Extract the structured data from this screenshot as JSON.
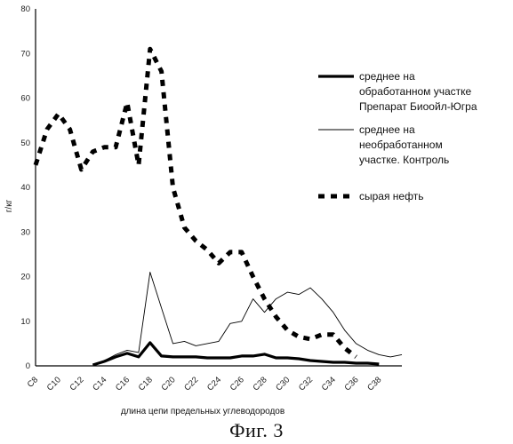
{
  "caption": "Фиг. 3",
  "chart_data": {
    "type": "line",
    "ylabel": "г/кг",
    "xlabel": "длина цепи предельных углеводородов",
    "ylim": [
      0,
      80
    ],
    "yticks": [
      0,
      10,
      20,
      30,
      40,
      50,
      60,
      70,
      80
    ],
    "categories": [
      "C8",
      "C9",
      "C10",
      "C11",
      "C12",
      "C13",
      "C14",
      "C15",
      "C16",
      "C17",
      "C18",
      "C19",
      "C20",
      "C21",
      "C22",
      "C23",
      "C24",
      "C25",
      "C26",
      "C27",
      "C28",
      "C29",
      "C30",
      "C31",
      "C32",
      "C33",
      "C34",
      "C35",
      "C36",
      "C37",
      "C38",
      "C39",
      "C40"
    ],
    "xtick_labels": [
      "C8",
      "C10",
      "C12",
      "C14",
      "C16",
      "C18",
      "C20",
      "C22",
      "C24",
      "C26",
      "C28",
      "C30",
      "C32",
      "C34",
      "C36",
      "C38"
    ],
    "grid": false,
    "legend_position": "right",
    "series": [
      {
        "name": "среднее на обработанном участке Препарат Биоойл-Югра",
        "style": "thick",
        "color": "#000000",
        "values": [
          null,
          null,
          null,
          null,
          null,
          0.2,
          1.0,
          2.0,
          2.8,
          2.0,
          5.2,
          2.2,
          2.0,
          2.0,
          2.0,
          1.8,
          1.8,
          1.8,
          2.2,
          2.2,
          2.6,
          1.8,
          1.8,
          1.6,
          1.2,
          1.0,
          0.8,
          0.8,
          0.6,
          0.6,
          0.4,
          null,
          null
        ]
      },
      {
        "name": "среднее на необработанном участке. Контроль",
        "style": "thin",
        "color": "#000000",
        "values": [
          null,
          null,
          null,
          null,
          null,
          0.3,
          1.2,
          2.5,
          3.5,
          3.0,
          21.0,
          13.0,
          5.0,
          5.5,
          4.5,
          5.0,
          5.5,
          9.5,
          10.0,
          15.0,
          12.0,
          15.0,
          16.5,
          16.0,
          17.5,
          15.0,
          12.0,
          8.0,
          5.0,
          3.5,
          2.5,
          2.0,
          2.5
        ]
      },
      {
        "name": "сырая нефть",
        "style": "dashed",
        "color": "#000000",
        "values": [
          45.0,
          53.0,
          56.5,
          53.0,
          44.0,
          48.0,
          49.0,
          49.0,
          59.0,
          45.0,
          71.0,
          66.0,
          40.0,
          31.0,
          28.0,
          26.0,
          23.0,
          25.5,
          25.5,
          20.0,
          15.0,
          11.0,
          8.0,
          6.5,
          6.0,
          7.0,
          7.0,
          4.0,
          2.0,
          null,
          null,
          null,
          null
        ]
      }
    ]
  }
}
